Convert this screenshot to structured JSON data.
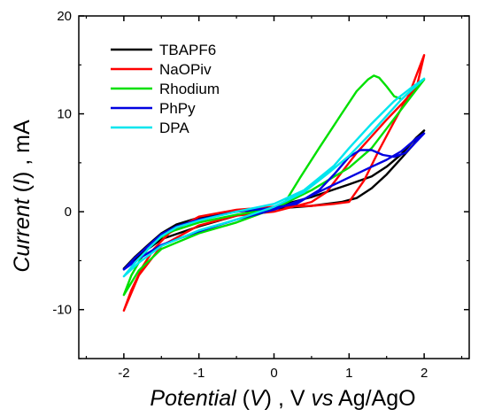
{
  "chart_data": {
    "type": "line",
    "xlabel": {
      "italic": "Potential",
      "mid1": " (",
      "symbol": "V",
      "mid2": ") ,  V ",
      "vs": "vs",
      "rest": " Ag/AgO"
    },
    "ylabel": {
      "italic": "Current",
      "mid1": " (",
      "symbol": "I",
      "mid2": ") ,  mA"
    },
    "xlim": [
      -2.6,
      2.6
    ],
    "ylim": [
      -15,
      20
    ],
    "xticks": [
      -2,
      -1,
      0,
      1,
      2
    ],
    "yticks": [
      -10,
      0,
      10,
      20
    ],
    "xtick_labels": [
      "-2",
      "-1",
      "0",
      "1",
      "2"
    ],
    "ytick_labels": [
      "-10",
      "0",
      "10",
      "20"
    ],
    "legend_position": "top-left",
    "series": [
      {
        "name": "TBAPF6",
        "color": "#000000",
        "x": [
          -2,
          -1.85,
          -1.65,
          -1.5,
          -1.3,
          -1,
          -0.5,
          0,
          0.5,
          0.9,
          1.1,
          1.3,
          1.5,
          1.7,
          1.85,
          2,
          1.9,
          1.7,
          1.5,
          1.3,
          1.0,
          0.5,
          0,
          -0.5,
          -1,
          -1.5,
          -1.8,
          -2
        ],
        "y": [
          -5.8,
          -4.6,
          -3.2,
          -2.2,
          -1.3,
          -0.6,
          0,
          0.3,
          0.6,
          1,
          1.4,
          2.4,
          3.8,
          5.5,
          6.8,
          8.3,
          7.6,
          5.9,
          4.6,
          3.6,
          2.8,
          1.5,
          0.5,
          -0.4,
          -1.5,
          -2.8,
          -4.5,
          -5.8
        ]
      },
      {
        "name": "NaOPiv",
        "color": "#ff0000",
        "x": [
          -2,
          -1.9,
          -1.75,
          -1.6,
          -1.4,
          -1,
          -0.5,
          0,
          0.5,
          0.8,
          1.0,
          1.2,
          1.4,
          1.6,
          1.8,
          1.9,
          2,
          1.9,
          1.7,
          1.5,
          1.3,
          1.1,
          0.9,
          0.7,
          0.5,
          0,
          -0.5,
          -1,
          -1.5,
          -1.8,
          -2
        ],
        "y": [
          -10.1,
          -8,
          -5.6,
          -3.8,
          -2.2,
          -0.5,
          0.2,
          0.5,
          0.6,
          0.8,
          1,
          3.2,
          6.3,
          9.2,
          12,
          14,
          16,
          12.7,
          11,
          9.4,
          7.7,
          6,
          4,
          2,
          1,
          0,
          -0.4,
          -1.4,
          -3.5,
          -6.5,
          -10.1
        ]
      },
      {
        "name": "Rhodium",
        "color": "#00e000",
        "x": [
          -2,
          -1.9,
          -1.75,
          -1.6,
          -1.4,
          -1,
          -0.5,
          0,
          0.1,
          0.15,
          0.35,
          0.6,
          0.9,
          1.1,
          1.25,
          1.33,
          1.4,
          1.5,
          1.6,
          1.7,
          1.8,
          2,
          1.9,
          1.7,
          1.5,
          1.3,
          1.0,
          0.5,
          0,
          -0.5,
          -1,
          -1.5,
          -1.8,
          -2
        ],
        "y": [
          -8.5,
          -6.5,
          -4.5,
          -3.1,
          -2.1,
          -1.1,
          -0.3,
          0.3,
          0.5,
          1.0,
          3.5,
          6.5,
          10,
          12.3,
          13.5,
          13.9,
          13.7,
          12.8,
          11.8,
          11.5,
          12.2,
          13.5,
          12.5,
          10.5,
          8.5,
          6.5,
          4.5,
          2.2,
          0.3,
          -1.1,
          -2.2,
          -3.8,
          -6,
          -8.5
        ]
      },
      {
        "name": "PhPy",
        "color": "#0000e0",
        "x": [
          -2,
          -1.85,
          -1.65,
          -1.5,
          -1.3,
          -1,
          -0.5,
          0,
          0.3,
          0.6,
          0.8,
          1.0,
          1.15,
          1.3,
          1.45,
          1.6,
          1.75,
          1.85,
          2,
          1.9,
          1.7,
          1.5,
          1.3,
          1.0,
          0.7,
          0.4,
          0,
          -0.5,
          -1,
          -1.5,
          -1.8,
          -2
        ],
        "y": [
          -5.9,
          -4.7,
          -3.3,
          -2.3,
          -1.5,
          -0.8,
          0,
          0.4,
          0.8,
          2.2,
          3.8,
          5.6,
          6.3,
          6.3,
          5.8,
          5.6,
          6.0,
          6.8,
          8.0,
          7.5,
          6.2,
          5.3,
          4.6,
          3.5,
          2.4,
          1.3,
          0.2,
          -0.8,
          -2.0,
          -3.4,
          -4.8,
          -5.9
        ]
      },
      {
        "name": "DPA",
        "color": "#00e5ee",
        "x": [
          -2,
          -1.85,
          -1.65,
          -1.5,
          -1.3,
          -1,
          -0.5,
          0,
          0.4,
          0.8,
          1.0,
          1.3,
          1.6,
          1.8,
          2,
          1.9,
          1.7,
          1.5,
          1.3,
          1.0,
          0.7,
          0.4,
          0,
          -0.5,
          -1,
          -1.5,
          -1.8,
          -2
        ],
        "y": [
          -6.6,
          -5.2,
          -3.6,
          -2.5,
          -1.6,
          -0.9,
          0,
          0.8,
          2.2,
          4.7,
          6.5,
          9,
          11.3,
          12.5,
          13.6,
          12.9,
          11.5,
          9.8,
          8.1,
          5.7,
          3.8,
          2.0,
          0.5,
          -0.8,
          -1.9,
          -3.5,
          -5.2,
          -6.6
        ]
      }
    ]
  }
}
